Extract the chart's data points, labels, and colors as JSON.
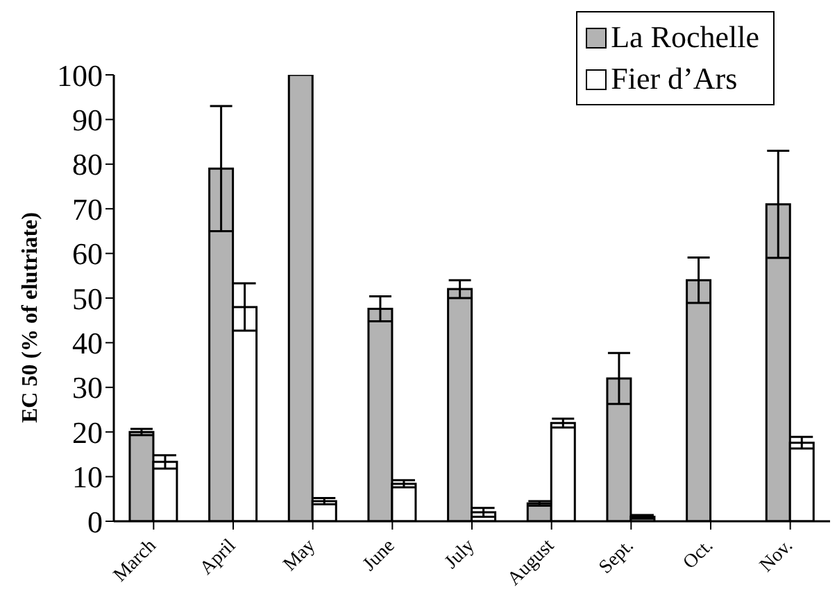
{
  "chart_data": {
    "type": "bar",
    "ylabel": "EC 50 (% of elutriate)",
    "categories": [
      "March",
      "April",
      "May",
      "June",
      "July",
      "August",
      "Sept.",
      "Oct.",
      "Nov."
    ],
    "series": [
      {
        "name": "La Rochelle",
        "color": "#b3b3b3",
        "values": [
          20,
          79,
          100,
          47.6,
          52,
          4,
          32,
          54,
          71
        ],
        "errors": [
          0.7,
          14,
          null,
          2.8,
          2,
          0.5,
          5.7,
          5.1,
          12
        ]
      },
      {
        "name": "Fier d’Ars",
        "color": "#ffffff",
        "values": [
          13.3,
          48,
          4.5,
          8.4,
          2,
          22,
          1,
          null,
          17.6
        ],
        "errors": [
          1.5,
          5.3,
          0.7,
          0.8,
          1,
          1,
          0.4,
          null,
          1.3
        ]
      }
    ],
    "ylim": [
      0,
      100
    ],
    "yticks": [
      0,
      10,
      20,
      30,
      40,
      50,
      60,
      70,
      80,
      90,
      100
    ],
    "legend": "top right"
  }
}
